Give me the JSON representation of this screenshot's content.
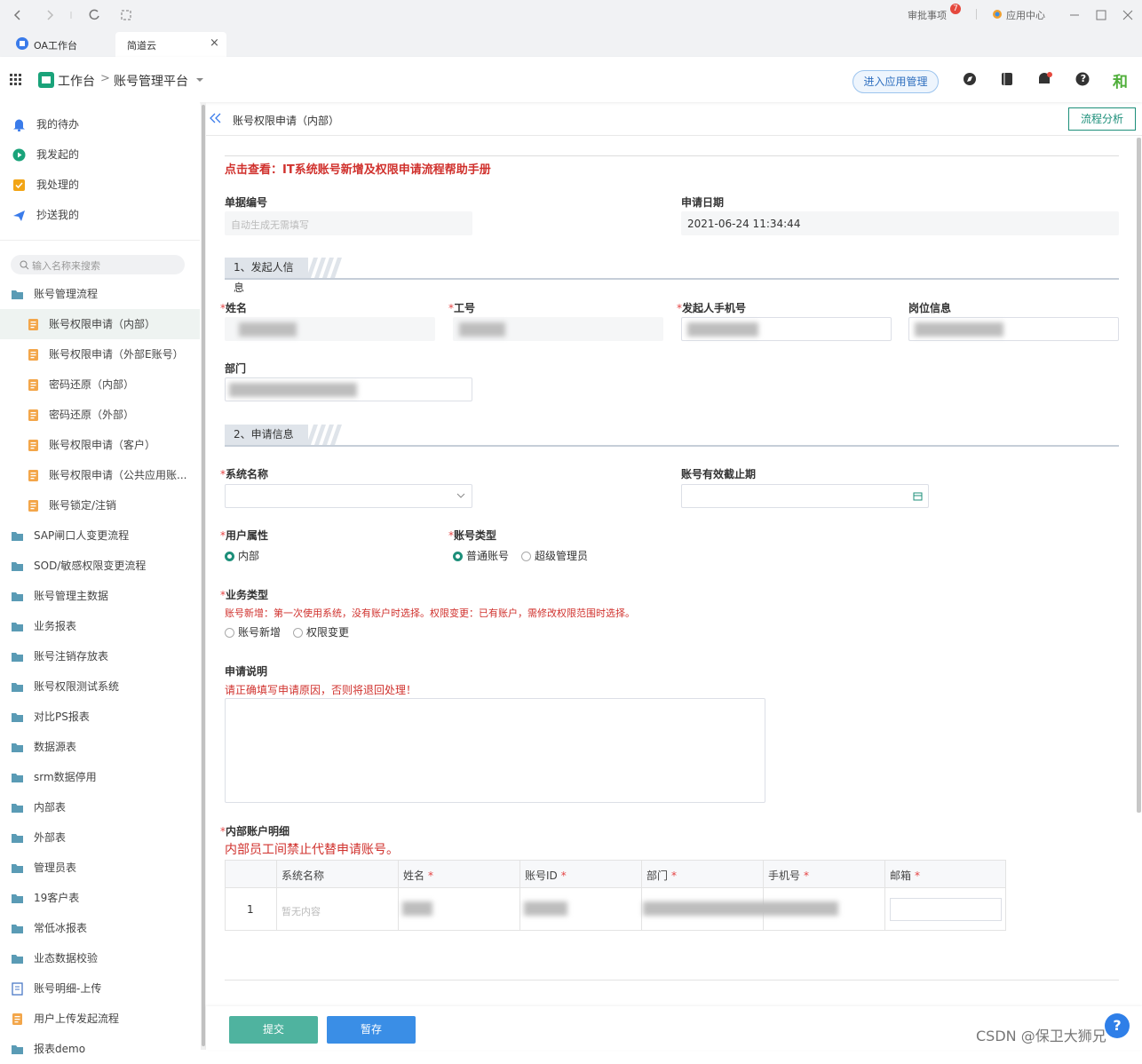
{
  "browser": {
    "approval": "审批事项",
    "approval_badge": "7",
    "app_center": "应用中心"
  },
  "tabs": [
    "OA工作台",
    "简道云"
  ],
  "tab_close": "×",
  "header": {
    "workbench": "工作台",
    "separator": ">",
    "platform": "账号管理平台",
    "manage_button": "进入应用管理",
    "avatar": "和"
  },
  "sidebar": {
    "quick": [
      {
        "label": "我的待办",
        "icon": "bell"
      },
      {
        "label": "我发起的",
        "icon": "play"
      },
      {
        "label": "我处理的",
        "icon": "check"
      },
      {
        "label": "抄送我的",
        "icon": "send"
      }
    ],
    "search_placeholder": "输入名称来搜索",
    "tree": [
      {
        "label": "账号管理流程",
        "icon": "folder",
        "child": false,
        "active": false
      },
      {
        "label": "账号权限申请（内部）",
        "icon": "form",
        "child": true,
        "active": true
      },
      {
        "label": "账号权限申请（外部E账号）",
        "icon": "form",
        "child": true,
        "active": false
      },
      {
        "label": "密码还原（内部）",
        "icon": "form",
        "child": true,
        "active": false
      },
      {
        "label": "密码还原（外部）",
        "icon": "form",
        "child": true,
        "active": false
      },
      {
        "label": "账号权限申请（客户）",
        "icon": "form",
        "child": true,
        "active": false
      },
      {
        "label": "账号权限申请（公共应用账...",
        "icon": "form",
        "child": true,
        "active": false
      },
      {
        "label": "账号锁定/注销",
        "icon": "form",
        "child": true,
        "active": false
      },
      {
        "label": "SAP闸口人变更流程",
        "icon": "folder",
        "child": false,
        "active": false
      },
      {
        "label": "SOD/敏感权限变更流程",
        "icon": "folder",
        "child": false,
        "active": false
      },
      {
        "label": "账号管理主数据",
        "icon": "folder",
        "child": false,
        "active": false
      },
      {
        "label": "业务报表",
        "icon": "folder",
        "child": false,
        "active": false
      },
      {
        "label": "账号注销存放表",
        "icon": "folder",
        "child": false,
        "active": false
      },
      {
        "label": "账号权限测试系统",
        "icon": "folder",
        "child": false,
        "active": false
      },
      {
        "label": "对比PS报表",
        "icon": "folder",
        "child": false,
        "active": false
      },
      {
        "label": "数据源表",
        "icon": "folder",
        "child": false,
        "active": false
      },
      {
        "label": "srm数据停用",
        "icon": "folder",
        "child": false,
        "active": false
      },
      {
        "label": "内部表",
        "icon": "folder",
        "child": false,
        "active": false
      },
      {
        "label": "外部表",
        "icon": "folder",
        "child": false,
        "active": false
      },
      {
        "label": "管理员表",
        "icon": "folder",
        "child": false,
        "active": false
      },
      {
        "label": "19客户表",
        "icon": "folder",
        "child": false,
        "active": false
      },
      {
        "label": "常低冰报表",
        "icon": "folder",
        "child": false,
        "active": false
      },
      {
        "label": "业态数据校验",
        "icon": "folder",
        "child": false,
        "active": false
      },
      {
        "label": "账号明细-上传",
        "icon": "doc",
        "child": false,
        "active": false
      },
      {
        "label": "用户上传发起流程",
        "icon": "form",
        "child": false,
        "active": false
      },
      {
        "label": "报表demo",
        "icon": "folder",
        "child": false,
        "active": false
      }
    ]
  },
  "main": {
    "title": "账号权限申请（内部）",
    "analysis_button": "流程分析",
    "help_link": "点击查看：IT系统账号新增及权限申请流程帮助手册",
    "doc_no": {
      "label": "单据编号",
      "placeholder": "自动生成无需填写"
    },
    "apply_date": {
      "label": "申请日期",
      "value": "2021-06-24 11:34:44"
    },
    "section1": "1、发起人信息",
    "name": "姓名",
    "emp_no": "工号",
    "phone": "发起人手机号",
    "position": "岗位信息",
    "dept": "部门",
    "section2": "2、申请信息",
    "system": "系统名称",
    "expiry": "账号有效截止期",
    "user_attr": {
      "label": "用户属性",
      "options": [
        {
          "label": "内部",
          "selected": true
        }
      ]
    },
    "account_type": {
      "label": "账号类型",
      "options": [
        {
          "label": "普通账号",
          "selected": true
        },
        {
          "label": "超级管理员",
          "selected": false
        }
      ]
    },
    "biz_type": {
      "label": "业务类型",
      "note": "账号新增：第一次使用系统，没有账户时选择。权限变更：已有账户，需修改权限范围时选择。",
      "options": [
        {
          "label": "账号新增",
          "selected": false
        },
        {
          "label": "权限变更",
          "selected": false
        }
      ]
    },
    "reason": {
      "label": "申请说明",
      "note": "请正确填写申请原因，否则将退回处理！"
    },
    "detail": {
      "label": "内部账户明细",
      "note": "内部员工间禁止代替申请账号。",
      "columns": [
        {
          "label": "系统名称",
          "required": false
        },
        {
          "label": "姓名",
          "required": true
        },
        {
          "label": "账号ID",
          "required": true
        },
        {
          "label": "部门",
          "required": true
        },
        {
          "label": "手机号",
          "required": true
        },
        {
          "label": "邮箱",
          "required": true
        }
      ],
      "row_index": "1",
      "placeholder": "暂无内容"
    },
    "submit": "提交",
    "save": "暂存"
  },
  "required_mark": "*",
  "help_icon": "?",
  "watermark": "CSDN @保卫大狮兄"
}
